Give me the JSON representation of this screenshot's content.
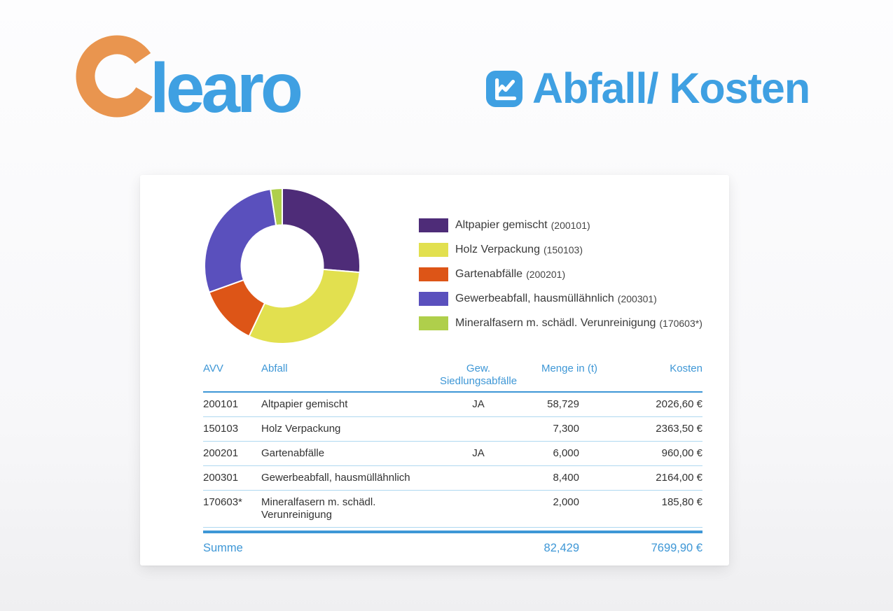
{
  "brand": {
    "name": "Clearo",
    "logo_text_rest": "learo",
    "logo_c_color": "#E9954F",
    "logo_text_color": "#3FA0E2"
  },
  "header": {
    "title": "Abfall/ Kosten",
    "title_color": "#3FA0E2",
    "icon": "chart-line-icon"
  },
  "chart_data": {
    "type": "pie",
    "subtype": "donut",
    "proportional_to": "Kosten",
    "start_angle_deg": 0,
    "direction": "clockwise",
    "legend_position": "right",
    "segments": [
      {
        "label": "Altpapier gemischt",
        "code": "200101",
        "kosten_eur": 2026.6,
        "menge_t_display": "58,729",
        "color": "#4E2C78"
      },
      {
        "label": "Holz Verpackung",
        "code": "150103",
        "kosten_eur": 2363.5,
        "menge_t_display": "7,300",
        "color": "#E2E04F"
      },
      {
        "label": "Gartenabfälle",
        "code": "200201",
        "kosten_eur": 960.0,
        "menge_t_display": "6,000",
        "color": "#DD5517"
      },
      {
        "label": "Gewerbeabfall, hausmüllähnlich",
        "code": "200301",
        "kosten_eur": 2164.0,
        "menge_t_display": "8,400",
        "color": "#5A50BD"
      },
      {
        "label": "Mineralfasern m. schädl. Verunreinigung",
        "code": "170603*",
        "kosten_eur": 185.8,
        "menge_t_display": "2,000",
        "color": "#AFCF4B"
      }
    ],
    "total_kosten_eur": 7699.9,
    "total_menge_t_display": "82,429"
  },
  "legend": {
    "items": [
      {
        "label": "Altpapier gemischt",
        "code": "(200101)"
      },
      {
        "label": "Holz Verpackung",
        "code": "(150103)"
      },
      {
        "label": "Gartenabfälle",
        "code": "(200201)"
      },
      {
        "label": "Gewerbeabfall, hausmüllähnlich",
        "code": "(200301)"
      },
      {
        "label": "Mineralfasern m. schädl. Verunreinigung",
        "code": "(170603*)"
      }
    ]
  },
  "table": {
    "columns": {
      "avv": "AVV",
      "abfall": "Abfall",
      "gew": "Gew. Siedlungsabfälle",
      "menge": "Menge in (t)",
      "kosten": "Kosten"
    },
    "rows": [
      {
        "avv": "200101",
        "abfall": "Altpapier gemischt",
        "gew": "JA",
        "menge": "58,729",
        "kosten": "2026,60 €"
      },
      {
        "avv": "150103",
        "abfall": "Holz Verpackung",
        "gew": "",
        "menge": "7,300",
        "kosten": "2363,50 €"
      },
      {
        "avv": "200201",
        "abfall": "Gartenabfälle",
        "gew": "JA",
        "menge": "6,000",
        "kosten": "960,00 €"
      },
      {
        "avv": "200301",
        "abfall": "Gewerbeabfall, hausmüllähnlich",
        "gew": "",
        "menge": "8,400",
        "kosten": "2164,00 €"
      },
      {
        "avv": "170603*",
        "abfall": "Mineralfasern m. schädl. Verunreinigung",
        "gew": "",
        "menge": "2,000",
        "kosten": "185,80 €"
      }
    ],
    "summary": {
      "label": "Summe",
      "menge": "82,429",
      "kosten": "7699,90 €"
    }
  },
  "colors": {
    "brand_blue": "#3FA0E2",
    "table_blue": "#3E97D6",
    "row_divider": "#AFD8F0",
    "text_dark": "#333333",
    "logo_orange": "#E9954F",
    "card_bg": "#FFFFFF"
  }
}
